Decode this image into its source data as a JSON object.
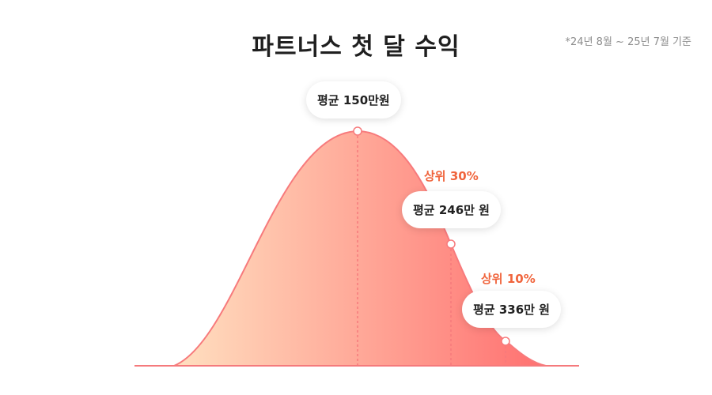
{
  "title": "파트너스 첫 달 수익",
  "note": "*24년 8월 ~ 25년 7월 기준",
  "colors": {
    "curve": "#f77a7c",
    "fill_start": "#ffe0c0",
    "fill_end": "#ff7070",
    "accent": "#f0643c",
    "baseline": "#f57a7c"
  },
  "chart_data": {
    "type": "area",
    "title": "파트너스 첫 달 수익",
    "markers": [
      {
        "label": "평균 150만원",
        "tier": "",
        "value_manwon": 150
      },
      {
        "label": "평균 246만 원",
        "tier": "상위 30%",
        "value_manwon": 246
      },
      {
        "label": "평균 336만 원",
        "tier": "상위 10%",
        "value_manwon": 336
      }
    ]
  }
}
